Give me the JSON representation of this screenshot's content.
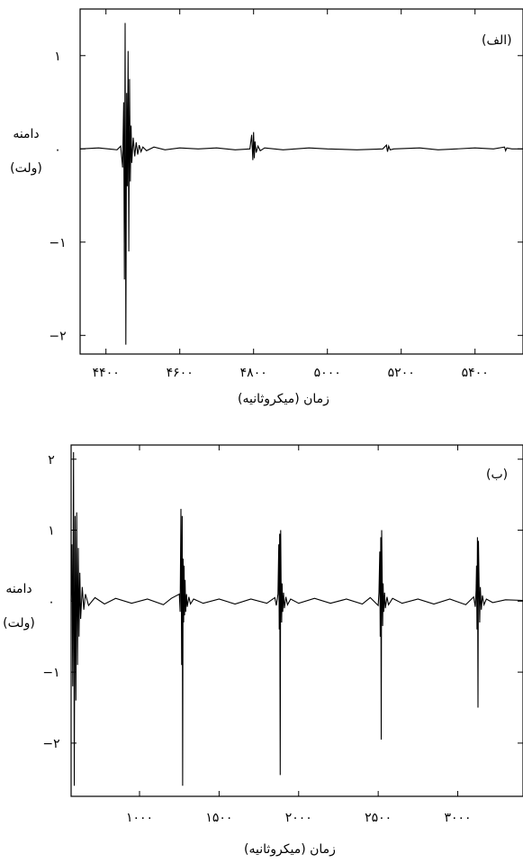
{
  "chart_data": [
    {
      "type": "line",
      "panel_label": "(الف)",
      "ylabel": [
        "دامنه",
        "(ولت)"
      ],
      "xlabel": "زمان (میکروثانیه)",
      "xticks": [
        4400,
        4600,
        4800,
        5000,
        5200,
        5400
      ],
      "xtick_labels": [
        "۴۴۰۰",
        "۴۶۰۰",
        "۴۸۰۰",
        "۵۰۰۰",
        "۵۲۰۰",
        "۵۴۰۰"
      ],
      "yticks": [
        1,
        0,
        -1,
        -2
      ],
      "ytick_labels": [
        "۱",
        "۰",
        "−۱",
        "−۲"
      ],
      "xlim": [
        4330,
        5530
      ],
      "ylim": [
        -2.2,
        1.5
      ],
      "line_color": "#000000",
      "series": [
        {
          "x": [
            4330,
            4380,
            4430,
            4440,
            4445,
            4448,
            4450,
            4452,
            4454,
            4456,
            4458,
            4460,
            4462,
            4464,
            4466,
            4468,
            4470,
            4474,
            4478,
            4482,
            4486,
            4490,
            4495,
            4500,
            4510,
            4530,
            4560,
            4600,
            4650,
            4700,
            4750,
            4790,
            4795,
            4798,
            4800,
            4802,
            4804,
            4807,
            4812,
            4818,
            4830,
            4880,
            4950,
            5000,
            5080,
            5150,
            5160,
            5163,
            5166,
            5170,
            5180,
            5250,
            5300,
            5350,
            5400,
            5450,
            5480,
            5483,
            5486,
            5500,
            5530
          ],
          "y": [
            0,
            0.01,
            -0.01,
            0.03,
            -0.2,
            0.5,
            -1.4,
            1.35,
            -2.1,
            0.6,
            -0.4,
            1.05,
            -1.1,
            0.75,
            -0.35,
            0.25,
            -0.15,
            0.12,
            -0.08,
            0.07,
            -0.06,
            0.04,
            -0.03,
            0.02,
            -0.02,
            0.02,
            -0.01,
            0.01,
            0,
            0.01,
            -0.01,
            0,
            0.15,
            -0.12,
            0.18,
            -0.1,
            0.08,
            -0.04,
            0.03,
            -0.02,
            0.01,
            -0.01,
            0.01,
            0,
            -0.01,
            0,
            0.04,
            -0.03,
            0.03,
            -0.01,
            0,
            0.01,
            -0.01,
            0,
            0.01,
            0,
            0.02,
            -0.02,
            0.01,
            0,
            0
          ]
        }
      ]
    },
    {
      "type": "line",
      "panel_label": "(ب)",
      "ylabel": [
        "دامنه",
        "(ولت)"
      ],
      "xlabel": "زمان (میکروثانیه)",
      "xticks": [
        1000,
        1500,
        2000,
        2500,
        3000
      ],
      "xtick_labels": [
        "۱۰۰۰",
        "۱۵۰۰",
        "۲۰۰۰",
        "۲۵۰۰",
        "۳۰۰۰"
      ],
      "yticks": [
        2,
        1,
        0,
        -1,
        -2
      ],
      "ytick_labels": [
        "۲",
        "۱",
        "۰",
        "−۱",
        "−۲"
      ],
      "xlim": [
        570,
        3410
      ],
      "ylim": [
        -2.75,
        2.2
      ],
      "line_color": "#000000",
      "series": [
        {
          "x": [
            570,
            575,
            580,
            585,
            590,
            595,
            600,
            605,
            610,
            615,
            620,
            625,
            630,
            640,
            650,
            660,
            680,
            720,
            780,
            850,
            950,
            1050,
            1150,
            1200,
            1250,
            1255,
            1260,
            1265,
            1268,
            1271,
            1274,
            1277,
            1280,
            1283,
            1286,
            1290,
            1295,
            1300,
            1310,
            1320,
            1340,
            1400,
            1500,
            1600,
            1700,
            1800,
            1850,
            1860,
            1870,
            1875,
            1878,
            1881,
            1884,
            1887,
            1890,
            1893,
            1896,
            1900,
            1905,
            1910,
            1920,
            1930,
            1950,
            2000,
            2100,
            2200,
            2300,
            2400,
            2450,
            2500,
            2505,
            2510,
            2513,
            2516,
            2519,
            2522,
            2525,
            2528,
            2531,
            2535,
            2540,
            2545,
            2555,
            2565,
            2590,
            2650,
            2750,
            2850,
            2950,
            3050,
            3100,
            3110,
            3115,
            3118,
            3121,
            3124,
            3127,
            3130,
            3134,
            3138,
            3142,
            3148,
            3155,
            3165,
            3180,
            3220,
            3300,
            3410
          ],
          "y": [
            0,
            0.8,
            -1.2,
            2.1,
            -2.6,
            1.2,
            -1.4,
            1.25,
            -0.9,
            0.75,
            -0.5,
            0.4,
            -0.25,
            0.2,
            -0.12,
            0.1,
            -0.06,
            0.05,
            -0.04,
            0.04,
            -0.03,
            0.03,
            -0.05,
            0.04,
            0.1,
            -0.15,
            1.3,
            -0.9,
            1.2,
            -2.6,
            0.6,
            -0.3,
            0.5,
            -0.2,
            0.3,
            -0.15,
            0.1,
            -0.08,
            0.06,
            -0.04,
            0.03,
            -0.03,
            0.03,
            -0.04,
            0.03,
            -0.03,
            0.05,
            -0.06,
            0.1,
            0.8,
            -0.4,
            0.95,
            -2.45,
            1.0,
            0.2,
            -0.3,
            0.25,
            -0.15,
            0.12,
            -0.1,
            0.06,
            -0.05,
            0.03,
            -0.03,
            0.04,
            -0.03,
            0.03,
            -0.04,
            0.05,
            -0.06,
            0.12,
            0.7,
            -0.5,
            0.9,
            -1.95,
            1.0,
            0.3,
            -0.35,
            0.25,
            -0.15,
            0.12,
            -0.1,
            0.06,
            -0.05,
            0.04,
            -0.03,
            0.03,
            -0.04,
            0.03,
            -0.05,
            0.06,
            -0.08,
            0.15,
            0.5,
            -0.4,
            0.9,
            -1.5,
            0.85,
            0.25,
            -0.3,
            0.2,
            -0.12,
            0.08,
            -0.05,
            0.03,
            -0.02,
            0.02,
            0.01
          ]
        }
      ]
    }
  ]
}
